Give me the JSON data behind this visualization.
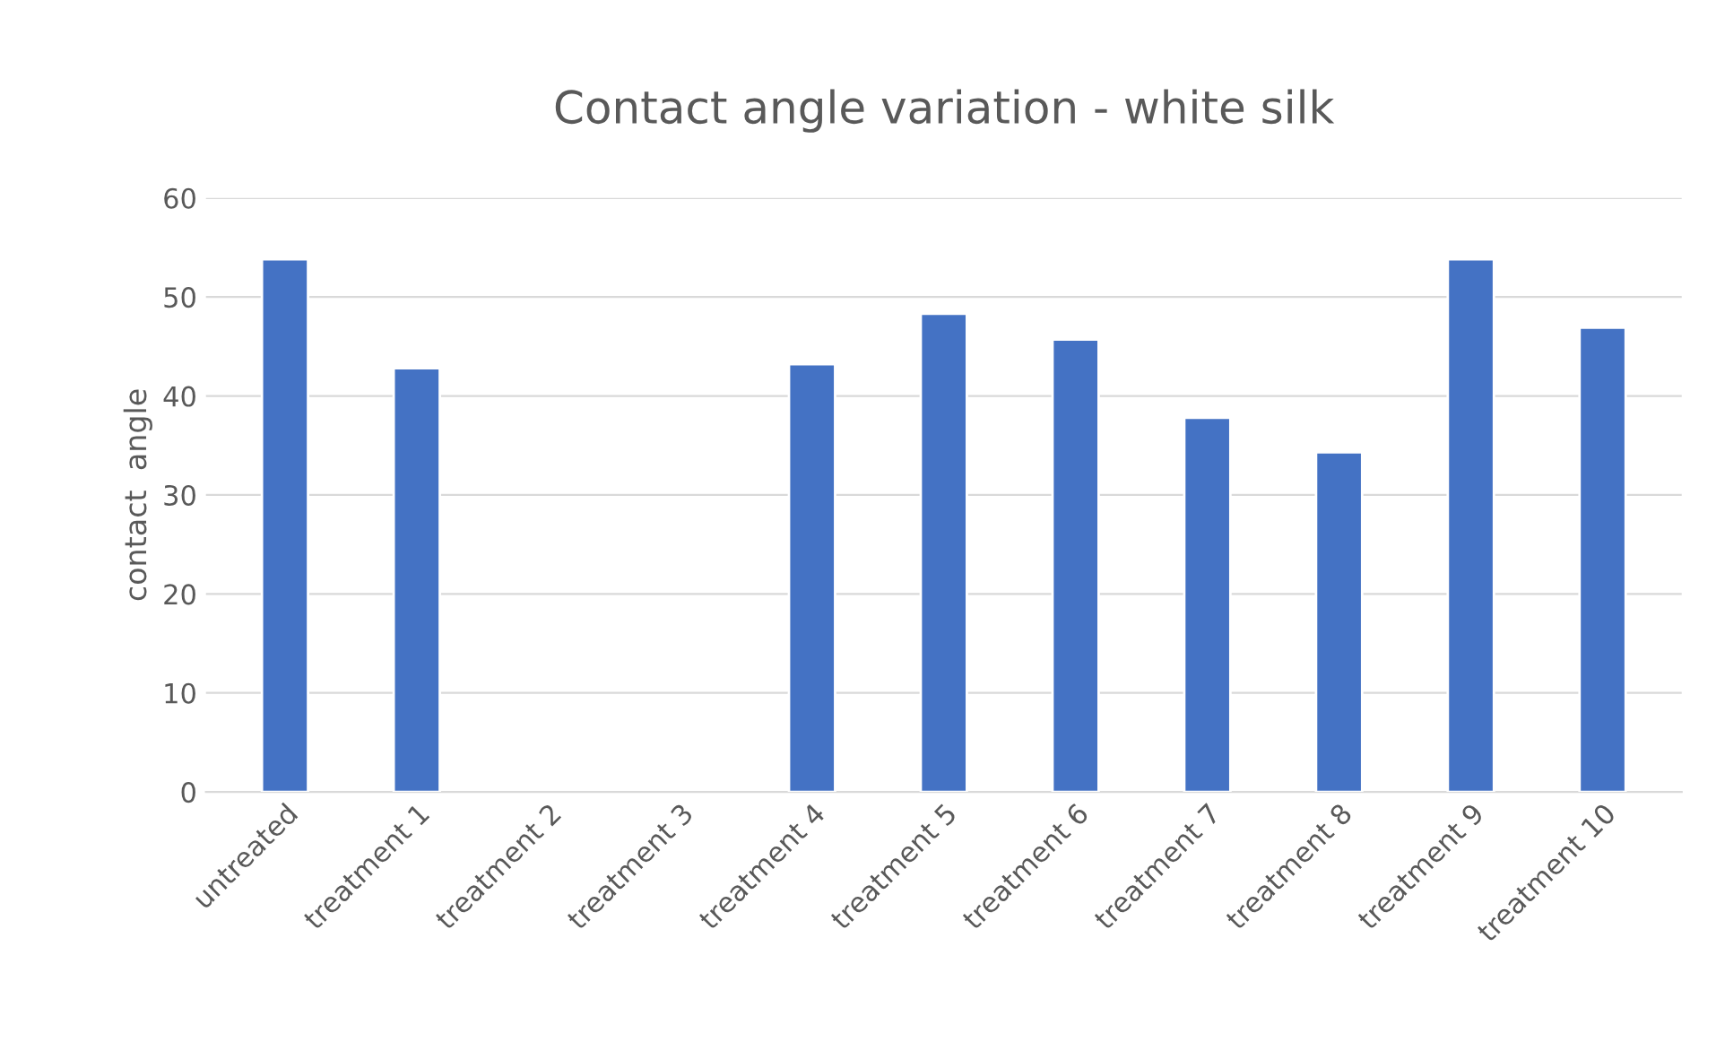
{
  "chart_data": {
    "type": "bar",
    "title": "Contact angle variation - white silk",
    "ylabel": "contact  angle",
    "categories": [
      "untreated",
      "treatment 1",
      "treatment 2",
      "treatment 3",
      "treatment 4",
      "treatment 5",
      "treatment 6",
      "treatment 7",
      "treatment 8",
      "treatment 9",
      "treatment 10"
    ],
    "values": [
      53.8,
      42.8,
      null,
      null,
      43.2,
      48.3,
      45.7,
      37.8,
      34.3,
      53.8,
      46.9
    ],
    "color": "#4472c4",
    "ylim": [
      0,
      60
    ],
    "yticks": [
      0,
      10,
      20,
      30,
      40,
      50,
      60
    ],
    "grid": "y"
  }
}
